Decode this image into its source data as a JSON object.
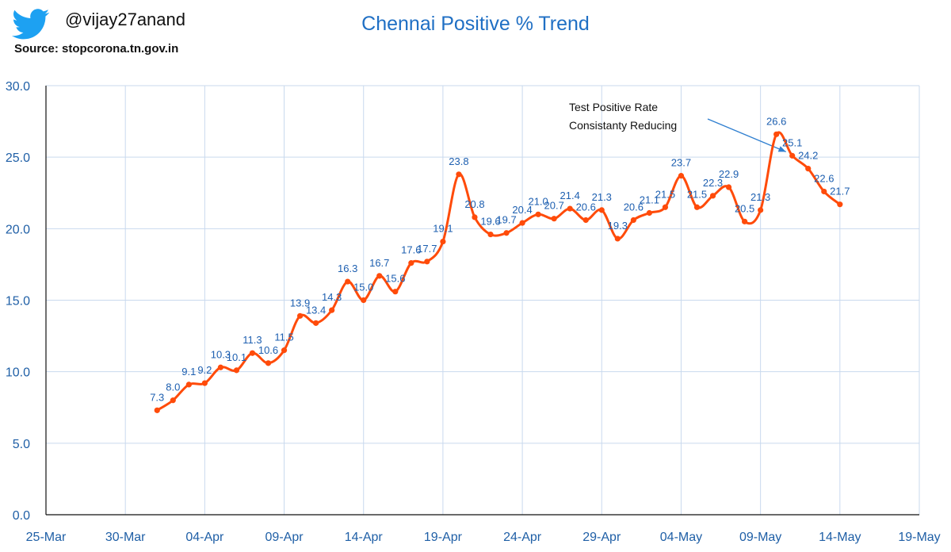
{
  "header": {
    "handle": "@vijay27anand",
    "source": "Source: stopcorona.tn.gov.in",
    "icon": "twitter-bird-icon",
    "icon_color": "#1da1f2"
  },
  "chart_data": {
    "type": "line",
    "title": "Chennai Positive % Trend",
    "xlabel": "",
    "ylabel": "",
    "ylim": [
      0,
      30
    ],
    "y_ticks": [
      "0.0",
      "5.0",
      "10.0",
      "15.0",
      "20.0",
      "25.0",
      "30.0"
    ],
    "x_ticks": [
      "25-Mar",
      "30-Mar",
      "04-Apr",
      "09-Apr",
      "14-Apr",
      "19-Apr",
      "24-Apr",
      "29-Apr",
      "04-May",
      "09-May",
      "14-May",
      "19-May"
    ],
    "x_range": [
      "2020-03-25",
      "2020-05-19"
    ],
    "grid": true,
    "line_color": "#ff4b0a",
    "series": [
      {
        "x": [
          "2020-04-01",
          "2020-04-02",
          "2020-04-03",
          "2020-04-04",
          "2020-04-05",
          "2020-04-06",
          "2020-04-07",
          "2020-04-08",
          "2020-04-09",
          "2020-04-10",
          "2020-04-11",
          "2020-04-12",
          "2020-04-13",
          "2020-04-14",
          "2020-04-15",
          "2020-04-16",
          "2020-04-17",
          "2020-04-18",
          "2020-04-19",
          "2020-04-20",
          "2020-04-21",
          "2020-04-22",
          "2020-04-23",
          "2020-04-24",
          "2020-04-25",
          "2020-04-26",
          "2020-04-27",
          "2020-04-28",
          "2020-04-29",
          "2020-04-30",
          "2020-05-01",
          "2020-05-02",
          "2020-05-03",
          "2020-05-04",
          "2020-05-05",
          "2020-05-06",
          "2020-05-07",
          "2020-05-08",
          "2020-05-09",
          "2020-05-10",
          "2020-05-11",
          "2020-05-12",
          "2020-05-13",
          "2020-05-14"
        ],
        "values": [
          7.3,
          8.0,
          9.1,
          9.2,
          10.3,
          10.1,
          11.3,
          10.6,
          11.5,
          13.9,
          13.4,
          14.3,
          16.3,
          15.0,
          16.7,
          15.6,
          17.6,
          17.7,
          19.1,
          23.8,
          20.8,
          19.6,
          19.7,
          20.4,
          21.0,
          20.7,
          21.4,
          20.6,
          21.3,
          19.3,
          20.6,
          21.1,
          21.5,
          23.7,
          21.5,
          22.3,
          22.9,
          20.5,
          21.3,
          26.6,
          25.1,
          24.2,
          22.6,
          21.7
        ],
        "labels": [
          "7.3",
          "8.0",
          "9.1",
          "9.2",
          "10.3",
          "10.1",
          "11.3",
          "10.6",
          "11.5",
          "13.9",
          "13.4",
          "14.3",
          "16.3",
          "15.0",
          "16.7",
          "15.6",
          "17.6",
          "17.7",
          "19.1",
          "23.8",
          "20.8",
          "19.6",
          "19.7",
          "20.4",
          "21.0",
          "20.7",
          "21.4",
          "20.6",
          "21.3",
          "19.3",
          "20.6",
          "21.1",
          "21.5",
          "23.7",
          "21.5",
          "22.3",
          "22.9",
          "20.5",
          "21.3",
          "26.6",
          "25.1",
          "24.2",
          "22.6",
          "21.7"
        ]
      }
    ],
    "annotations": [
      {
        "lines": [
          "Test Positive Rate",
          "Consistanty Reducing"
        ],
        "arrow_to": [
          "2020-05-11",
          25.1
        ]
      }
    ]
  }
}
